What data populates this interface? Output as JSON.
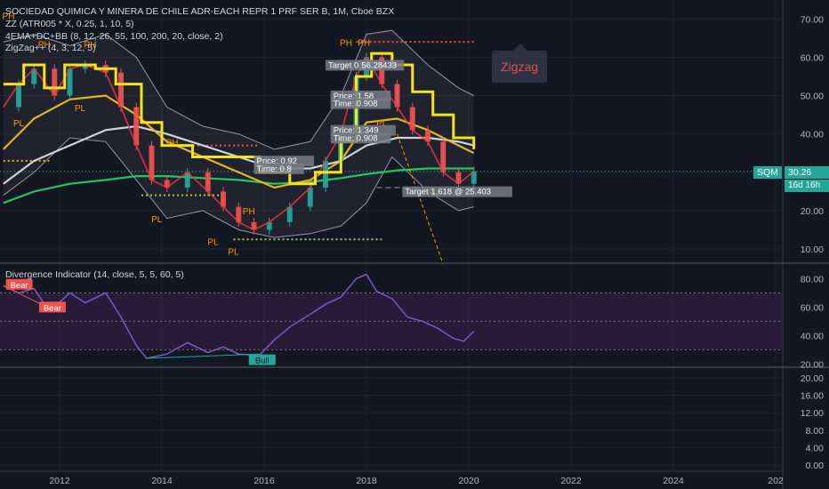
{
  "legend": {
    "symbol_line": "SOCIEDAD QUIMICA Y MINERA DE CHILE ADR-EACH REPR 1 PRF SER B, 1M, Cboe BZX",
    "indicator_1": "ZZ (ATR005 * X, 0.25, 1, 10, 5)",
    "indicator_2": "4EMA+DC+BB (8, 12, 26, 55, 100, 200, 20, close, 2)",
    "indicator_3": "ZigZag++ (4, 3, 12, 5)",
    "divergence": "Divergence Indicator (14, close, 5, 5, 60, 5)"
  },
  "annotation": {
    "zigzag_label": "Zigzag"
  },
  "price_tag": {
    "symbol": "SQM",
    "price": "30.26",
    "countdown": "16d 16h"
  },
  "colors": {
    "background": "#131722",
    "up": "#26a69a",
    "down": "#ef5350",
    "zigzag_step": "#f5e31e",
    "ema_fast": "#f23645",
    "ema_gold": "#e6b422",
    "ema_white": "#d1d4dc",
    "ema_green": "#22c55e",
    "bb_gray": "#9598a1",
    "rsi_line": "#7e57c2",
    "band_fill": "#3a1f4d",
    "bear": "#ef5350",
    "bull": "#26a69a",
    "pivot_label": "#ff9800",
    "dotted_red": "#ef5350",
    "dotted_green": "#9bcf5a"
  },
  "chart_data": [
    {
      "type": "line",
      "title": "SOCIEDAD QUIMICA Y MINERA DE CHILE ADR-EACH REPR 1 PRF SER B, 1M, Cboe BZX",
      "x_axis": {
        "ticks": [
          "2012",
          "2014",
          "2016",
          "2018",
          "2020",
          "2022",
          "2024",
          "202"
        ]
      },
      "y_axis": {
        "ticks": [
          10,
          20,
          30,
          40,
          50,
          60,
          70
        ],
        "scale": "linear",
        "ylim": [
          7,
          74
        ]
      },
      "series": [
        {
          "name": "close",
          "points": [
            [
              2010.9,
              47
            ],
            [
              2011.2,
              53
            ],
            [
              2011.5,
              57
            ],
            [
              2011.9,
              50
            ],
            [
              2012.2,
              57
            ],
            [
              2012.5,
              58
            ],
            [
              2012.9,
              56
            ],
            [
              2013.2,
              47
            ],
            [
              2013.5,
              37
            ],
            [
              2013.8,
              28
            ],
            [
              2014.1,
              26
            ],
            [
              2014.5,
              30
            ],
            [
              2014.9,
              25
            ],
            [
              2015.2,
              21
            ],
            [
              2015.5,
              17
            ],
            [
              2015.8,
              15
            ],
            [
              2016.1,
              17
            ],
            [
              2016.5,
              21
            ],
            [
              2016.9,
              26
            ],
            [
              2017.2,
              33
            ],
            [
              2017.5,
              40
            ],
            [
              2017.8,
              55
            ],
            [
              2018.0,
              60
            ],
            [
              2018.3,
              53
            ],
            [
              2018.6,
              47
            ],
            [
              2018.9,
              41
            ],
            [
              2019.2,
              38
            ],
            [
              2019.5,
              30
            ],
            [
              2019.8,
              27
            ],
            [
              2020.1,
              30.26
            ]
          ]
        },
        {
          "name": "zigzag_step",
          "points": [
            [
              2010.9,
              53
            ],
            [
              2011.3,
              58
            ],
            [
              2011.7,
              52
            ],
            [
              2012.1,
              58
            ],
            [
              2012.7,
              57
            ],
            [
              2013.1,
              53
            ],
            [
              2013.6,
              43
            ],
            [
              2014.0,
              37
            ],
            [
              2014.6,
              34
            ],
            [
              2015.2,
              34
            ],
            [
              2015.9,
              30
            ],
            [
              2016.5,
              27
            ],
            [
              2017.0,
              30
            ],
            [
              2017.5,
              38
            ],
            [
              2017.8,
              55
            ],
            [
              2018.1,
              61
            ],
            [
              2018.5,
              58
            ],
            [
              2018.9,
              51
            ],
            [
              2019.3,
              45
            ],
            [
              2019.7,
              39
            ],
            [
              2020.1,
              36
            ]
          ]
        },
        {
          "name": "ema_gold",
          "points": [
            [
              2010.9,
              36
            ],
            [
              2011.5,
              44
            ],
            [
              2012.2,
              49
            ],
            [
              2012.9,
              50
            ],
            [
              2013.5,
              45
            ],
            [
              2014.1,
              38
            ],
            [
              2014.8,
              34
            ],
            [
              2015.5,
              30
            ],
            [
              2016.2,
              26
            ],
            [
              2016.9,
              28
            ],
            [
              2017.5,
              33
            ],
            [
              2018.0,
              43
            ],
            [
              2018.6,
              44
            ],
            [
              2019.2,
              41
            ],
            [
              2019.8,
              37
            ],
            [
              2020.1,
              35
            ]
          ]
        },
        {
          "name": "ema_white",
          "points": [
            [
              2010.9,
              27
            ],
            [
              2011.5,
              33
            ],
            [
              2012.2,
              37
            ],
            [
              2012.9,
              41
            ],
            [
              2013.5,
              42
            ],
            [
              2014.1,
              40
            ],
            [
              2014.8,
              37
            ],
            [
              2015.5,
              34
            ],
            [
              2016.2,
              31
            ],
            [
              2016.9,
              31
            ],
            [
              2017.5,
              33
            ],
            [
              2018.0,
              37
            ],
            [
              2018.6,
              39
            ],
            [
              2019.2,
              39
            ],
            [
              2019.8,
              38
            ],
            [
              2020.1,
              37
            ]
          ]
        },
        {
          "name": "ema_green",
          "points": [
            [
              2010.9,
              22
            ],
            [
              2011.5,
              25
            ],
            [
              2012.2,
              27
            ],
            [
              2012.9,
              28
            ],
            [
              2013.5,
              29
            ],
            [
              2014.1,
              29
            ],
            [
              2014.8,
              28.5
            ],
            [
              2015.5,
              28
            ],
            [
              2016.2,
              27
            ],
            [
              2016.9,
              27.5
            ],
            [
              2017.5,
              28.5
            ],
            [
              2018.0,
              29.5
            ],
            [
              2018.6,
              30.5
            ],
            [
              2019.2,
              31
            ],
            [
              2019.8,
              31
            ],
            [
              2020.1,
              31
            ]
          ]
        },
        {
          "name": "bb_upper",
          "points": [
            [
              2010.9,
              64
            ],
            [
              2011.5,
              66
            ],
            [
              2012.2,
              63
            ],
            [
              2012.9,
              66
            ],
            [
              2013.5,
              60
            ],
            [
              2014.1,
              47
            ],
            [
              2014.8,
              42
            ],
            [
              2015.5,
              40
            ],
            [
              2016.2,
              36
            ],
            [
              2016.9,
              38
            ],
            [
              2017.5,
              50
            ],
            [
              2018.0,
              66
            ],
            [
              2018.5,
              67
            ],
            [
              2019.2,
              58
            ],
            [
              2019.8,
              52
            ],
            [
              2020.1,
              50
            ]
          ]
        },
        {
          "name": "bb_lower",
          "points": [
            [
              2010.9,
              24
            ],
            [
              2011.5,
              30
            ],
            [
              2012.2,
              39
            ],
            [
              2012.9,
              38
            ],
            [
              2013.5,
              28
            ],
            [
              2014.1,
              18
            ],
            [
              2014.8,
              20
            ],
            [
              2015.5,
              15
            ],
            [
              2016.2,
              13
            ],
            [
              2016.9,
              14
            ],
            [
              2017.5,
              16
            ],
            [
              2018.0,
              22
            ],
            [
              2018.5,
              34
            ],
            [
              2019.2,
              25
            ],
            [
              2019.8,
              20
            ],
            [
              2020.1,
              21
            ]
          ]
        }
      ],
      "pivot_labels": [
        {
          "text": "PH",
          "x": 2011.0,
          "y": 70
        },
        {
          "text": "PH",
          "x": 2011.7,
          "y": 62.5
        },
        {
          "text": "PH",
          "x": 2012.6,
          "y": 62.5
        },
        {
          "text": "PL",
          "x": 2011.2,
          "y": 42
        },
        {
          "text": "PL",
          "x": 2012.4,
          "y": 46
        },
        {
          "text": "PH",
          "x": 2014.2,
          "y": 37
        },
        {
          "text": "PL",
          "x": 2013.9,
          "y": 17
        },
        {
          "text": "PL",
          "x": 2015.0,
          "y": 11
        },
        {
          "text": "PL",
          "x": 2015.4,
          "y": 8.5
        },
        {
          "text": "PH",
          "x": 2015.7,
          "y": 19
        },
        {
          "text": "PH",
          "x": 2017.6,
          "y": 63
        },
        {
          "text": "PH",
          "x": 2017.95,
          "y": 63
        },
        {
          "text": "PL",
          "x": 2018.3,
          "y": 42
        },
        {
          "text": "PL",
          "x": 2019.3,
          "y": 24
        }
      ],
      "annotations": [
        {
          "text": "Target 0.6",
          "x": 2017.2,
          "y": 57
        },
        {
          "text": "56.28433",
          "x": 2017.85,
          "y": 57
        },
        {
          "text": "Price: 1.58",
          "x": 2017.3,
          "y": 49
        },
        {
          "text": "Time: 0.908",
          "x": 2017.3,
          "y": 47
        },
        {
          "text": "Price: 1.349",
          "x": 2017.3,
          "y": 40
        },
        {
          "text": "Time: 0.908",
          "x": 2017.3,
          "y": 38
        },
        {
          "text": "Price: 0.92",
          "x": 2015.8,
          "y": 32
        },
        {
          "text": "Time: 0.8",
          "x": 2015.8,
          "y": 30
        },
        {
          "text": "Target 1.618 @ 25.403",
          "x": 2018.7,
          "y": 24
        }
      ],
      "reference_levels": [
        {
          "name": "upper_dotted",
          "y": 64,
          "from": 2017.8,
          "to": 2020.1
        },
        {
          "name": "green_dotted_high",
          "y": 33,
          "from": 2010.9,
          "to": 2011.8
        },
        {
          "name": "green_dotted_mid",
          "y": 24,
          "from": 2013.6,
          "to": 2015.2
        },
        {
          "name": "green_dotted_low",
          "y": 12.5,
          "from": 2015.4,
          "to": 2018.3
        },
        {
          "name": "red_dotted_mid",
          "y": 37,
          "from": 2014.0,
          "to": 2015.9
        },
        {
          "name": "dashed_white_low",
          "y": 26,
          "from": 2018.2,
          "to": 2019.4
        }
      ],
      "last_price": 30.26
    },
    {
      "type": "line",
      "title": "Divergence Indicator (14, close, 5, 5, 60, 5)",
      "y_axis": {
        "ticks": [
          20,
          40,
          60,
          80
        ],
        "ylim": [
          19,
          89
        ]
      },
      "bands": [
        {
          "from": 30,
          "to": 70
        }
      ],
      "levels": [
        30,
        50,
        70
      ],
      "series": [
        {
          "name": "rsi",
          "points": [
            [
              2010.9,
              75
            ],
            [
              2011.2,
              70
            ],
            [
              2011.5,
              73
            ],
            [
              2011.8,
              57
            ],
            [
              2012.2,
              70
            ],
            [
              2012.5,
              63
            ],
            [
              2012.9,
              70
            ],
            [
              2013.2,
              53
            ],
            [
              2013.5,
              33
            ],
            [
              2013.7,
              24
            ],
            [
              2014.1,
              27
            ],
            [
              2014.5,
              35
            ],
            [
              2014.9,
              28
            ],
            [
              2015.2,
              32
            ],
            [
              2015.5,
              27
            ],
            [
              2015.9,
              26
            ],
            [
              2016.2,
              37
            ],
            [
              2016.5,
              46
            ],
            [
              2016.9,
              55
            ],
            [
              2017.2,
              62
            ],
            [
              2017.5,
              67
            ],
            [
              2017.8,
              80
            ],
            [
              2018.0,
              83
            ],
            [
              2018.2,
              71
            ],
            [
              2018.5,
              66
            ],
            [
              2018.8,
              53
            ],
            [
              2019.1,
              50
            ],
            [
              2019.4,
              45
            ],
            [
              2019.7,
              38
            ],
            [
              2019.9,
              36
            ],
            [
              2020.1,
              43
            ]
          ]
        }
      ],
      "signals": [
        {
          "text": "Bear",
          "x": 2010.95,
          "y": 76
        },
        {
          "text": "Bear",
          "x": 2011.6,
          "y": 60
        },
        {
          "text": "Bull",
          "x": 2015.7,
          "y": 23
        }
      ]
    },
    {
      "type": "line",
      "y_axis": {
        "ticks": [
          "0.00",
          "4.00",
          "8.00",
          "12.00",
          "16.00",
          "20.00"
        ],
        "ylim": [
          -1,
          22
        ]
      },
      "series": []
    }
  ]
}
